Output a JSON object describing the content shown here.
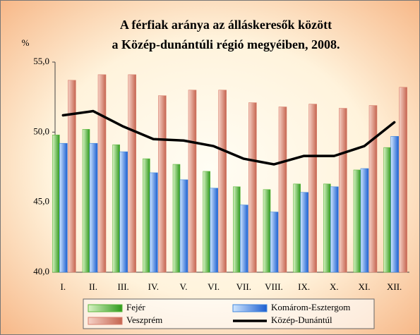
{
  "chart_data": {
    "type": "bar",
    "title": "A férfiak aránya az álláskeresők között",
    "subtitle": "a Közép-dunántúli régió megyéiben, 2008.",
    "y_axis_label": "%",
    "categories": [
      "I.",
      "II.",
      "III.",
      "IV.",
      "V.",
      "VI.",
      "VII.",
      "VIII.",
      "IX.",
      "X.",
      "XI.",
      "XII."
    ],
    "series": [
      {
        "name": "Fejér",
        "color": "#5cb83c",
        "values": [
          49.8,
          50.2,
          49.1,
          48.1,
          47.7,
          47.2,
          46.1,
          45.9,
          46.3,
          46.3,
          47.3,
          48.9
        ]
      },
      {
        "name": "Komárom-Esztergom",
        "color": "#3f86dc",
        "values": [
          49.2,
          49.2,
          48.6,
          47.1,
          46.6,
          46.0,
          44.8,
          44.3,
          45.7,
          46.1,
          47.4,
          49.7
        ]
      },
      {
        "name": "Veszprém",
        "color": "#d9806f",
        "values": [
          53.7,
          54.1,
          54.1,
          52.6,
          53.0,
          53.0,
          52.1,
          51.8,
          52.0,
          51.7,
          51.9,
          53.2
        ]
      },
      {
        "name": "Közép-Dunántúl",
        "type": "line",
        "color": "#000000",
        "values": [
          51.2,
          51.5,
          50.4,
          49.5,
          49.4,
          49.0,
          48.1,
          47.7,
          48.3,
          48.3,
          49.0,
          50.7
        ]
      }
    ],
    "ylim": [
      40,
      55
    ],
    "yticks": [
      {
        "value": 40,
        "label": "40,0"
      },
      {
        "value": 45,
        "label": "45,0"
      },
      {
        "value": 50,
        "label": "50,0"
      },
      {
        "value": 55,
        "label": "55,0"
      }
    ],
    "grid": false,
    "legend": "bottom"
  }
}
